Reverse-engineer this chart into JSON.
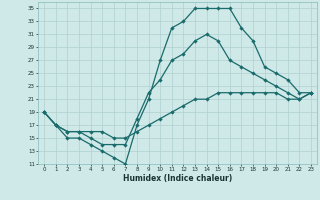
{
  "xlabel": "Humidex (Indice chaleur)",
  "xlim": [
    -0.5,
    23.5
  ],
  "ylim": [
    11,
    36
  ],
  "xticks": [
    0,
    1,
    2,
    3,
    4,
    5,
    6,
    7,
    8,
    9,
    10,
    11,
    12,
    13,
    14,
    15,
    16,
    17,
    18,
    19,
    20,
    21,
    22,
    23
  ],
  "yticks": [
    11,
    13,
    15,
    17,
    19,
    21,
    23,
    25,
    27,
    29,
    31,
    33,
    35
  ],
  "bg_color": "#cfe8e8",
  "grid_color": "#b0d0d0",
  "line_color": "#1a6b6b",
  "line1_x": [
    0,
    1,
    2,
    3,
    4,
    5,
    6,
    7,
    8,
    9,
    10,
    11,
    12,
    13,
    14,
    15,
    16,
    17,
    18,
    19,
    20,
    21,
    22,
    23
  ],
  "line1_y": [
    19,
    17,
    15,
    15,
    14,
    13,
    12,
    11,
    17,
    21,
    27,
    32,
    33,
    35,
    35,
    35,
    35,
    32,
    30,
    26,
    25,
    24,
    22,
    22
  ],
  "line2_x": [
    0,
    1,
    2,
    3,
    4,
    5,
    6,
    7,
    8,
    9,
    10,
    11,
    12,
    13,
    14,
    15,
    16,
    17,
    18,
    19,
    20,
    21,
    22,
    23
  ],
  "line2_y": [
    19,
    17,
    16,
    16,
    15,
    14,
    14,
    14,
    18,
    22,
    24,
    27,
    28,
    30,
    31,
    30,
    27,
    26,
    25,
    24,
    23,
    22,
    21,
    22
  ],
  "line3_x": [
    0,
    1,
    2,
    3,
    4,
    5,
    6,
    7,
    8,
    9,
    10,
    11,
    12,
    13,
    14,
    15,
    16,
    17,
    18,
    19,
    20,
    21,
    22,
    23
  ],
  "line3_y": [
    19,
    17,
    16,
    16,
    16,
    16,
    15,
    15,
    16,
    17,
    18,
    19,
    20,
    21,
    21,
    22,
    22,
    22,
    22,
    22,
    22,
    21,
    21,
    22
  ]
}
